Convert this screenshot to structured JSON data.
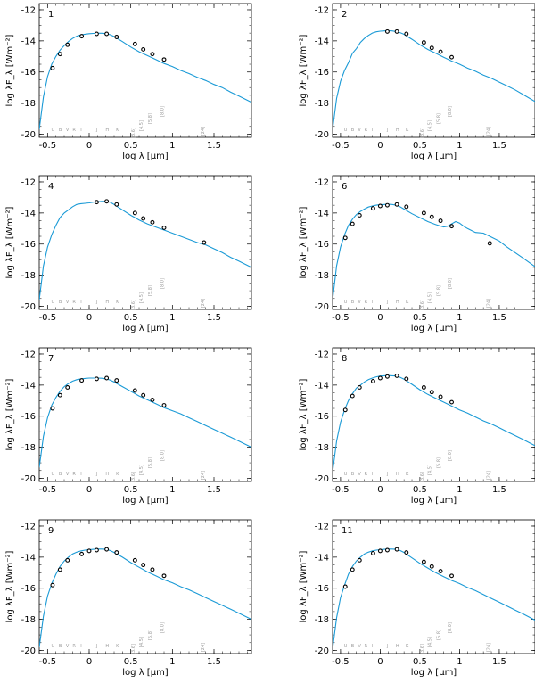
{
  "colors": {
    "model": "#1a9ad6",
    "axis": "#000000",
    "band_label": "#9a9a9a"
  },
  "common": {
    "xlabel": "log λ [μm]",
    "ylabel": "log λF_λ [Wm⁻²]",
    "xticks": [
      "-0.5",
      "0",
      "0.5",
      "1",
      "1.5"
    ],
    "yticks": [
      "-12",
      "-14",
      "-16",
      "-18",
      "-20"
    ],
    "band_letters": [
      "U",
      "B",
      "V",
      "R",
      "I",
      "J",
      "H",
      "K"
    ],
    "band_letter_x": [
      -0.436,
      -0.347,
      -0.262,
      -0.181,
      -0.097,
      0.093,
      0.217,
      0.34
    ],
    "irac_labels": [
      "[3.6]",
      "[4.5]",
      "[5.8]",
      "[8.0]"
    ],
    "irac_label_x": [
      0.556,
      0.653,
      0.763,
      0.903
    ],
    "mips_label": "[24]",
    "mips_label_x": 1.38
  },
  "chart_data": [
    {
      "type": "line",
      "panel_label": "1",
      "xlim": [
        -0.6,
        1.95
      ],
      "ylim": [
        -20.2,
        -11.6
      ],
      "model_x": [
        -0.6,
        -0.55,
        -0.5,
        -0.45,
        -0.4,
        -0.35,
        -0.3,
        -0.25,
        -0.2,
        -0.15,
        -0.1,
        -0.05,
        0,
        0.05,
        0.1,
        0.15,
        0.2,
        0.25,
        0.3,
        0.4,
        0.5,
        0.6,
        0.7,
        0.8,
        0.9,
        1.0,
        1.1,
        1.2,
        1.3,
        1.4,
        1.5,
        1.6,
        1.7,
        1.8,
        1.95
      ],
      "model_y": [
        -19.7,
        -17.6,
        -16.3,
        -15.5,
        -15.0,
        -14.6,
        -14.3,
        -14.05,
        -13.85,
        -13.7,
        -13.62,
        -13.57,
        -13.54,
        -13.52,
        -13.51,
        -13.51,
        -13.53,
        -13.6,
        -13.72,
        -14.05,
        -14.4,
        -14.7,
        -14.95,
        -15.2,
        -15.45,
        -15.65,
        -15.9,
        -16.1,
        -16.35,
        -16.55,
        -16.8,
        -17.0,
        -17.3,
        -17.55,
        -17.95
      ],
      "obs_x": [
        -0.44,
        -0.35,
        -0.26,
        -0.09,
        0.09,
        0.21,
        0.33,
        0.55,
        0.65,
        0.76,
        0.9
      ],
      "obs_y": [
        -15.75,
        -14.85,
        -14.25,
        -13.7,
        -13.55,
        -13.55,
        -13.75,
        -14.2,
        -14.55,
        -14.85,
        -15.2
      ],
      "show_mips_point": false
    },
    {
      "type": "line",
      "panel_label": "2",
      "xlim": [
        -0.6,
        1.95
      ],
      "ylim": [
        -20.2,
        -11.6
      ],
      "model_x": [
        -0.6,
        -0.55,
        -0.5,
        -0.45,
        -0.4,
        -0.35,
        -0.3,
        -0.25,
        -0.2,
        -0.15,
        -0.1,
        -0.05,
        0,
        0.05,
        0.1,
        0.15,
        0.2,
        0.25,
        0.3,
        0.4,
        0.5,
        0.6,
        0.7,
        0.8,
        0.9,
        1.0,
        1.1,
        1.2,
        1.3,
        1.4,
        1.5,
        1.6,
        1.7,
        1.8,
        1.95
      ],
      "model_y": [
        -19.7,
        -17.7,
        -16.6,
        -15.9,
        -15.4,
        -14.8,
        -14.5,
        -14.1,
        -13.85,
        -13.65,
        -13.5,
        -13.42,
        -13.38,
        -13.36,
        -13.35,
        -13.36,
        -13.4,
        -13.47,
        -13.58,
        -13.9,
        -14.25,
        -14.55,
        -14.8,
        -15.05,
        -15.3,
        -15.5,
        -15.75,
        -15.95,
        -16.2,
        -16.4,
        -16.65,
        -16.9,
        -17.15,
        -17.45,
        -17.9
      ],
      "obs_x": [
        0.09,
        0.21,
        0.33,
        0.55,
        0.65,
        0.76,
        0.9
      ],
      "obs_y": [
        -13.4,
        -13.4,
        -13.55,
        -14.1,
        -14.45,
        -14.7,
        -15.05
      ],
      "show_mips_point": false
    },
    {
      "type": "line",
      "panel_label": "4",
      "xlim": [
        -0.6,
        1.95
      ],
      "ylim": [
        -20.2,
        -11.6
      ],
      "model_x": [
        -0.6,
        -0.55,
        -0.5,
        -0.45,
        -0.4,
        -0.35,
        -0.3,
        -0.25,
        -0.2,
        -0.15,
        -0.1,
        -0.05,
        0,
        0.05,
        0.1,
        0.15,
        0.2,
        0.25,
        0.3,
        0.4,
        0.5,
        0.6,
        0.7,
        0.8,
        0.9,
        1.0,
        1.1,
        1.2,
        1.3,
        1.4,
        1.5,
        1.6,
        1.7,
        1.8,
        1.95
      ],
      "model_y": [
        -19.6,
        -17.4,
        -16.2,
        -15.4,
        -14.8,
        -14.3,
        -14.0,
        -13.8,
        -13.6,
        -13.45,
        -13.4,
        -13.38,
        -13.35,
        -13.3,
        -13.28,
        -13.25,
        -13.25,
        -13.3,
        -13.45,
        -13.8,
        -14.15,
        -14.45,
        -14.7,
        -14.9,
        -15.1,
        -15.3,
        -15.5,
        -15.7,
        -15.9,
        -16.05,
        -16.3,
        -16.55,
        -16.85,
        -17.1,
        -17.5
      ],
      "obs_x": [
        0.09,
        0.21,
        0.33,
        0.55,
        0.65,
        0.76,
        0.9,
        1.38
      ],
      "obs_y": [
        -13.3,
        -13.25,
        -13.45,
        -14.0,
        -14.35,
        -14.6,
        -14.95,
        -15.9
      ],
      "show_mips_point": true
    },
    {
      "type": "line",
      "panel_label": "6",
      "xlim": [
        -0.6,
        1.95
      ],
      "ylim": [
        -20.2,
        -11.6
      ],
      "model_x": [
        -0.6,
        -0.55,
        -0.5,
        -0.45,
        -0.4,
        -0.35,
        -0.3,
        -0.25,
        -0.2,
        -0.15,
        -0.1,
        -0.05,
        0,
        0.05,
        0.1,
        0.15,
        0.2,
        0.25,
        0.3,
        0.4,
        0.5,
        0.6,
        0.7,
        0.8,
        0.85,
        0.9,
        0.95,
        1.0,
        1.05,
        1.1,
        1.2,
        1.3,
        1.4,
        1.5,
        1.6,
        1.7,
        1.8,
        1.95
      ],
      "model_y": [
        -19.6,
        -17.4,
        -16.2,
        -15.4,
        -14.8,
        -14.4,
        -14.1,
        -13.9,
        -13.75,
        -13.62,
        -13.55,
        -13.5,
        -13.47,
        -13.45,
        -13.44,
        -13.45,
        -13.5,
        -13.6,
        -13.75,
        -14.05,
        -14.3,
        -14.55,
        -14.75,
        -14.9,
        -14.85,
        -14.7,
        -14.55,
        -14.65,
        -14.85,
        -15.0,
        -15.25,
        -15.3,
        -15.55,
        -15.8,
        -16.2,
        -16.55,
        -16.9,
        -17.45
      ],
      "obs_x": [
        -0.44,
        -0.35,
        -0.26,
        -0.09,
        0.0,
        0.09,
        0.21,
        0.33,
        0.55,
        0.65,
        0.76,
        0.9,
        1.38
      ],
      "obs_y": [
        -15.6,
        -14.7,
        -14.15,
        -13.7,
        -13.55,
        -13.5,
        -13.45,
        -13.6,
        -14.0,
        -14.25,
        -14.5,
        -14.85,
        -15.95
      ],
      "show_mips_point": true
    },
    {
      "type": "line",
      "panel_label": "7",
      "xlim": [
        -0.6,
        1.95
      ],
      "ylim": [
        -20.2,
        -11.6
      ],
      "model_x": [
        -0.6,
        -0.55,
        -0.5,
        -0.45,
        -0.4,
        -0.35,
        -0.3,
        -0.25,
        -0.2,
        -0.15,
        -0.1,
        -0.05,
        0,
        0.05,
        0.1,
        0.15,
        0.2,
        0.25,
        0.3,
        0.4,
        0.5,
        0.6,
        0.7,
        0.8,
        0.9,
        1.0,
        1.1,
        1.2,
        1.3,
        1.4,
        1.5,
        1.6,
        1.7,
        1.8,
        1.95
      ],
      "model_y": [
        -19.3,
        -17.3,
        -16.1,
        -15.3,
        -14.8,
        -14.4,
        -14.1,
        -13.9,
        -13.75,
        -13.65,
        -13.6,
        -13.57,
        -13.55,
        -13.55,
        -13.55,
        -13.56,
        -13.6,
        -13.67,
        -13.8,
        -14.1,
        -14.4,
        -14.7,
        -14.95,
        -15.2,
        -15.45,
        -15.65,
        -15.85,
        -16.1,
        -16.35,
        -16.6,
        -16.85,
        -17.1,
        -17.35,
        -17.6,
        -18.0
      ],
      "obs_x": [
        -0.44,
        -0.35,
        -0.26,
        -0.09,
        0.09,
        0.21,
        0.33,
        0.55,
        0.65,
        0.76,
        0.9
      ],
      "obs_y": [
        -15.5,
        -14.65,
        -14.15,
        -13.7,
        -13.6,
        -13.55,
        -13.7,
        -14.35,
        -14.65,
        -14.95,
        -15.3
      ],
      "show_mips_point": false
    },
    {
      "type": "line",
      "panel_label": "8",
      "xlim": [
        -0.6,
        1.95
      ],
      "ylim": [
        -20.2,
        -11.6
      ],
      "model_x": [
        -0.6,
        -0.55,
        -0.5,
        -0.45,
        -0.4,
        -0.35,
        -0.3,
        -0.25,
        -0.2,
        -0.15,
        -0.1,
        -0.05,
        0,
        0.05,
        0.1,
        0.15,
        0.2,
        0.25,
        0.3,
        0.4,
        0.5,
        0.6,
        0.7,
        0.8,
        0.9,
        1.0,
        1.1,
        1.2,
        1.3,
        1.4,
        1.5,
        1.6,
        1.7,
        1.8,
        1.95
      ],
      "model_y": [
        -19.6,
        -17.6,
        -16.4,
        -15.6,
        -15.0,
        -14.55,
        -14.2,
        -14.0,
        -13.8,
        -13.65,
        -13.55,
        -13.47,
        -13.42,
        -13.4,
        -13.39,
        -13.4,
        -13.42,
        -13.5,
        -13.62,
        -13.95,
        -14.3,
        -14.6,
        -14.85,
        -15.1,
        -15.35,
        -15.6,
        -15.8,
        -16.05,
        -16.3,
        -16.5,
        -16.75,
        -17.0,
        -17.25,
        -17.5,
        -17.9
      ],
      "obs_x": [
        -0.44,
        -0.35,
        -0.26,
        -0.09,
        0.0,
        0.09,
        0.21,
        0.33,
        0.55,
        0.65,
        0.76,
        0.9
      ],
      "obs_y": [
        -15.6,
        -14.7,
        -14.15,
        -13.75,
        -13.55,
        -13.45,
        -13.4,
        -13.6,
        -14.15,
        -14.45,
        -14.75,
        -15.1
      ],
      "show_mips_point": false
    },
    {
      "type": "line",
      "panel_label": "9",
      "xlim": [
        -0.6,
        1.95
      ],
      "ylim": [
        -20.2,
        -11.6
      ],
      "model_x": [
        -0.6,
        -0.55,
        -0.5,
        -0.45,
        -0.4,
        -0.35,
        -0.3,
        -0.25,
        -0.2,
        -0.15,
        -0.1,
        -0.05,
        0,
        0.05,
        0.1,
        0.15,
        0.2,
        0.25,
        0.3,
        0.4,
        0.5,
        0.6,
        0.7,
        0.8,
        0.9,
        1.0,
        1.1,
        1.2,
        1.3,
        1.4,
        1.5,
        1.6,
        1.7,
        1.8,
        1.95
      ],
      "model_y": [
        -19.8,
        -17.8,
        -16.5,
        -15.7,
        -15.1,
        -14.6,
        -14.25,
        -14.0,
        -13.8,
        -13.68,
        -13.6,
        -13.55,
        -13.52,
        -13.5,
        -13.48,
        -13.48,
        -13.5,
        -13.57,
        -13.7,
        -14.0,
        -14.35,
        -14.65,
        -14.95,
        -15.2,
        -15.45,
        -15.65,
        -15.9,
        -16.1,
        -16.35,
        -16.6,
        -16.85,
        -17.1,
        -17.35,
        -17.6,
        -18.0
      ],
      "obs_x": [
        -0.44,
        -0.35,
        -0.26,
        -0.09,
        0.0,
        0.09,
        0.21,
        0.33,
        0.55,
        0.65,
        0.76,
        0.9
      ],
      "obs_y": [
        -15.8,
        -14.8,
        -14.2,
        -13.8,
        -13.6,
        -13.55,
        -13.5,
        -13.7,
        -14.2,
        -14.5,
        -14.8,
        -15.2
      ],
      "show_mips_point": false
    },
    {
      "type": "line",
      "panel_label": "11",
      "xlim": [
        -0.6,
        1.95
      ],
      "ylim": [
        -20.2,
        -11.6
      ],
      "model_x": [
        -0.6,
        -0.55,
        -0.5,
        -0.45,
        -0.4,
        -0.35,
        -0.3,
        -0.25,
        -0.2,
        -0.15,
        -0.1,
        -0.05,
        0,
        0.05,
        0.1,
        0.15,
        0.2,
        0.25,
        0.3,
        0.4,
        0.5,
        0.6,
        0.7,
        0.8,
        0.9,
        1.0,
        1.1,
        1.2,
        1.3,
        1.4,
        1.5,
        1.6,
        1.7,
        1.8,
        1.95
      ],
      "model_y": [
        -19.9,
        -17.9,
        -16.6,
        -15.8,
        -15.1,
        -14.6,
        -14.25,
        -14.0,
        -13.8,
        -13.68,
        -13.6,
        -13.55,
        -13.52,
        -13.5,
        -13.48,
        -13.48,
        -13.5,
        -13.57,
        -13.7,
        -14.05,
        -14.4,
        -14.7,
        -15.0,
        -15.25,
        -15.5,
        -15.7,
        -15.95,
        -16.15,
        -16.4,
        -16.65,
        -16.9,
        -17.15,
        -17.4,
        -17.65,
        -18.05
      ],
      "obs_x": [
        -0.44,
        -0.35,
        -0.26,
        -0.09,
        0.0,
        0.09,
        0.21,
        0.33,
        0.55,
        0.65,
        0.76,
        0.9
      ],
      "obs_y": [
        -15.9,
        -14.8,
        -14.2,
        -13.75,
        -13.6,
        -13.55,
        -13.5,
        -13.7,
        -14.3,
        -14.6,
        -14.9,
        -15.2
      ],
      "show_mips_point": false
    }
  ]
}
